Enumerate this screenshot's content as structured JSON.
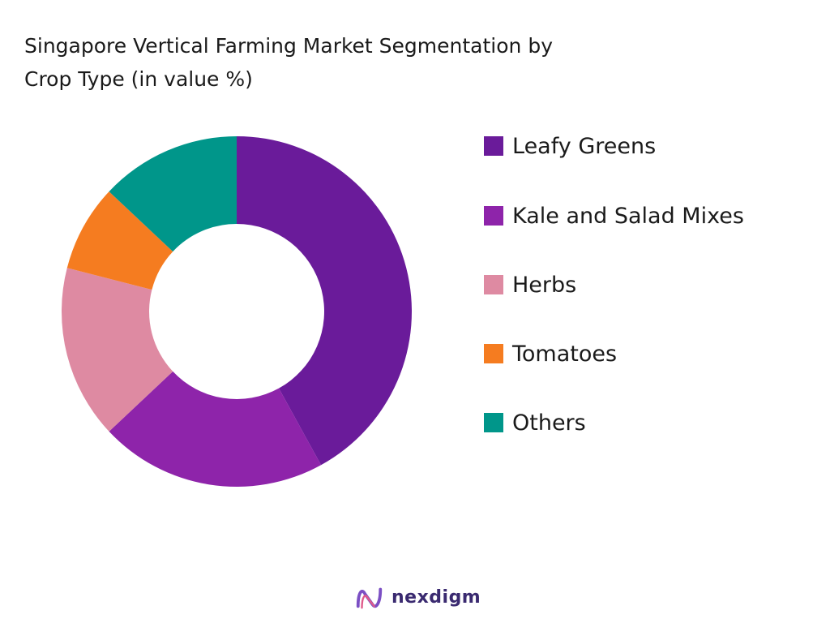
{
  "title_lines": [
    "Singapore Vertical Farming Market Segmentation by",
    "Crop Type (in value %)"
  ],
  "brand": {
    "name": "nexdigm",
    "logo_icon": "nexdigm-logo-icon"
  },
  "chart_data": {
    "type": "pie",
    "variant": "donut",
    "title": "Singapore Vertical Farming Market Segmentation by Crop Type (in value %)",
    "legend_position": "right",
    "start_angle": "12 o'clock, clockwise",
    "categories": [
      "Leafy Greens",
      "Kale and Salad Mixes",
      "Herbs",
      "Tomatoes",
      "Others"
    ],
    "values": [
      42,
      21,
      16,
      8,
      13
    ],
    "colors": [
      "#6a1b9a",
      "#8e24aa",
      "#de8aa2",
      "#f57c20",
      "#00968a"
    ]
  }
}
